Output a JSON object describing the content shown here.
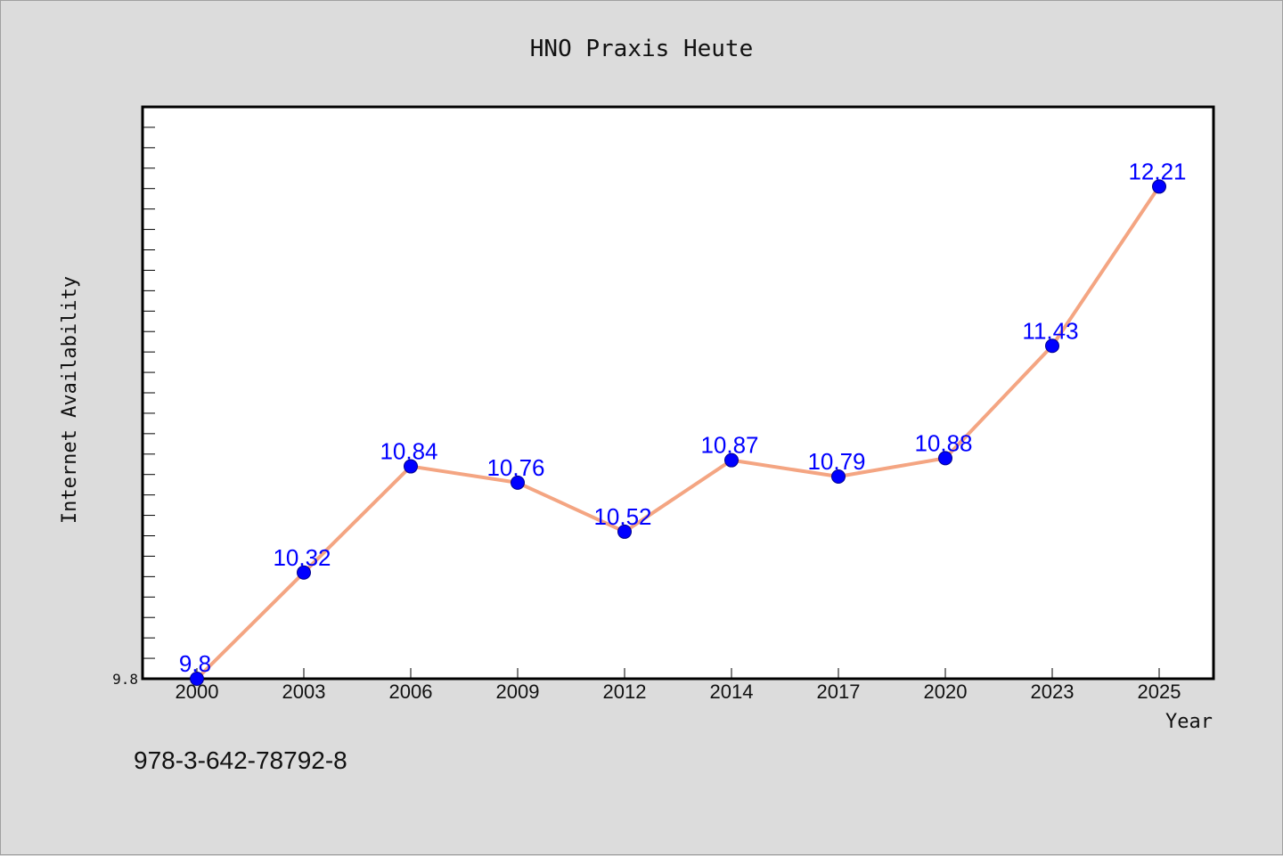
{
  "chart_data": {
    "type": "line",
    "title": "HNO Praxis Heute",
    "xlabel": "Year",
    "ylabel": "Internet Availability",
    "categories": [
      "2000",
      "2003",
      "2006",
      "2009",
      "2012",
      "2014",
      "2017",
      "2020",
      "2023",
      "2025"
    ],
    "series": [
      {
        "values": [
          9.8,
          10.32,
          10.84,
          10.76,
          10.52,
          10.87,
          10.79,
          10.88,
          11.43,
          12.21
        ],
        "labels": [
          "9.8",
          "10.32",
          "10.84",
          "10.76",
          "10.52",
          "10.87",
          "10.79",
          "10.88",
          "11.43",
          "12.21"
        ],
        "line_color": "#f4a582",
        "marker_color": "#0000ff"
      }
    ],
    "ylim": [
      9.8,
      12.6
    ],
    "yticks": [
      "9.8"
    ],
    "y_minor_step": 0.1,
    "grid": false,
    "legend": "none",
    "background": "#ffffff",
    "figure_background": "#dcdcdc",
    "label_color": "#0000ff"
  },
  "footnote": "978-3-642-78792-8"
}
